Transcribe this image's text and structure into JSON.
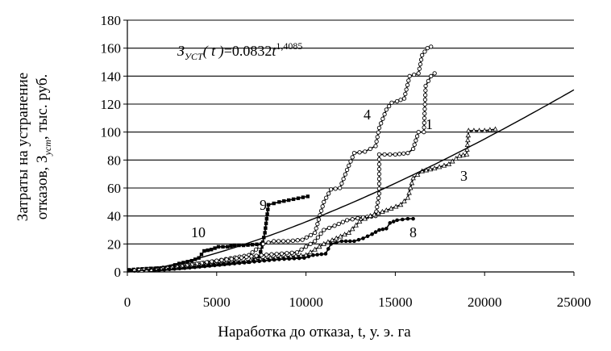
{
  "chart_data": {
    "type": "line",
    "xlabel": "Наработка до отказа, t, у. э. га",
    "ylabel_line1": "Затраты на устранение",
    "ylabel_line2": "отказов, З",
    "ylabel_sub": "уст",
    "ylabel_tail": ",  тыс. руб.",
    "xlim": [
      0,
      25000
    ],
    "ylim": [
      0,
      180
    ],
    "x_ticks": [
      0,
      5000,
      10000,
      15000,
      20000,
      25000
    ],
    "y_ticks": [
      0,
      20,
      40,
      60,
      80,
      100,
      120,
      140,
      160,
      180
    ],
    "grid": "horizontal",
    "legend": "none",
    "formula": {
      "lhs": "З",
      "lhs_sub": "УСТ",
      "arg": "( t )",
      "rhs": "=0.0832",
      "t": "t",
      "exp": "1,4085",
      "coef": 0.0832,
      "power": 1.4085
    },
    "series": [
      {
        "name": "10",
        "marker": "filled-square",
        "points": [
          [
            100,
            1.5
          ],
          [
            600,
            2
          ],
          [
            1300,
            2.5
          ],
          [
            2200,
            3
          ],
          [
            2900,
            6
          ],
          [
            3600,
            8
          ],
          [
            4000,
            10
          ],
          [
            4300,
            15
          ],
          [
            4700,
            16
          ],
          [
            5100,
            18
          ],
          [
            5600,
            18
          ],
          [
            6000,
            19
          ],
          [
            6500,
            19
          ],
          [
            7000,
            19.5
          ],
          [
            7500,
            20
          ]
        ]
      },
      {
        "name": "9",
        "marker": "filled-square",
        "points": [
          [
            200,
            1
          ],
          [
            1500,
            1.5
          ],
          [
            2800,
            3
          ],
          [
            3600,
            4
          ],
          [
            4600,
            5
          ],
          [
            5400,
            6
          ],
          [
            6000,
            7
          ],
          [
            6800,
            7
          ],
          [
            7400,
            11
          ],
          [
            7700,
            28
          ],
          [
            7900,
            48
          ],
          [
            8500,
            50
          ],
          [
            9300,
            52
          ],
          [
            10100,
            54
          ]
        ]
      },
      {
        "name": "4",
        "marker": "open-circle",
        "points": [
          [
            600,
            1
          ],
          [
            2000,
            3
          ],
          [
            3500,
            5
          ],
          [
            5000,
            8
          ],
          [
            6800,
            12
          ],
          [
            7600,
            20
          ],
          [
            8200,
            22
          ],
          [
            9000,
            22
          ],
          [
            9800,
            23
          ],
          [
            10500,
            28
          ],
          [
            11000,
            50
          ],
          [
            11400,
            59
          ],
          [
            11900,
            60
          ],
          [
            12300,
            73
          ],
          [
            12700,
            85
          ],
          [
            13300,
            86
          ],
          [
            13900,
            90
          ],
          [
            14100,
            103
          ],
          [
            14500,
            116
          ],
          [
            14800,
            121
          ],
          [
            15100,
            122
          ],
          [
            15500,
            124
          ],
          [
            15800,
            140
          ],
          [
            16300,
            142
          ],
          [
            16500,
            155
          ],
          [
            16800,
            160
          ],
          [
            17000,
            161
          ]
        ]
      },
      {
        "name": "1",
        "marker": "open-circle",
        "points": [
          [
            400,
            1
          ],
          [
            2500,
            3
          ],
          [
            5000,
            8
          ],
          [
            7500,
            12
          ],
          [
            9500,
            14
          ],
          [
            10500,
            22
          ],
          [
            11000,
            30
          ],
          [
            11600,
            33
          ],
          [
            12300,
            37
          ],
          [
            13200,
            39
          ],
          [
            13900,
            40
          ],
          [
            14100,
            56
          ],
          [
            14100,
            84
          ],
          [
            15000,
            84
          ],
          [
            15700,
            85
          ],
          [
            16000,
            88
          ],
          [
            16300,
            100
          ],
          [
            16600,
            100
          ],
          [
            16700,
            133
          ],
          [
            17000,
            140
          ],
          [
            17200,
            142
          ]
        ]
      },
      {
        "name": "3",
        "marker": "open-triangle",
        "points": [
          [
            800,
            1
          ],
          [
            3000,
            3
          ],
          [
            5500,
            6
          ],
          [
            8000,
            10
          ],
          [
            10000,
            12
          ],
          [
            11000,
            20
          ],
          [
            12400,
            28
          ],
          [
            13000,
            36
          ],
          [
            13600,
            40
          ],
          [
            14500,
            44
          ],
          [
            15300,
            48
          ],
          [
            15700,
            53
          ],
          [
            16000,
            67
          ],
          [
            16500,
            72
          ],
          [
            17200,
            74
          ],
          [
            18000,
            77
          ],
          [
            18600,
            83
          ],
          [
            19000,
            84
          ],
          [
            19100,
            101
          ],
          [
            20000,
            101
          ],
          [
            20600,
            102
          ]
        ]
      },
      {
        "name": "8",
        "marker": "filled-circle",
        "points": [
          [
            1500,
            1
          ],
          [
            3500,
            3
          ],
          [
            6000,
            6
          ],
          [
            8500,
            9
          ],
          [
            9900,
            10
          ],
          [
            10400,
            12
          ],
          [
            11100,
            13
          ],
          [
            11400,
            20
          ],
          [
            12000,
            22
          ],
          [
            12700,
            22
          ],
          [
            13200,
            24
          ],
          [
            13700,
            27
          ],
          [
            14100,
            30
          ],
          [
            14500,
            31
          ],
          [
            14700,
            35
          ],
          [
            15100,
            37
          ],
          [
            15700,
            38
          ],
          [
            16000,
            38
          ]
        ]
      }
    ]
  }
}
